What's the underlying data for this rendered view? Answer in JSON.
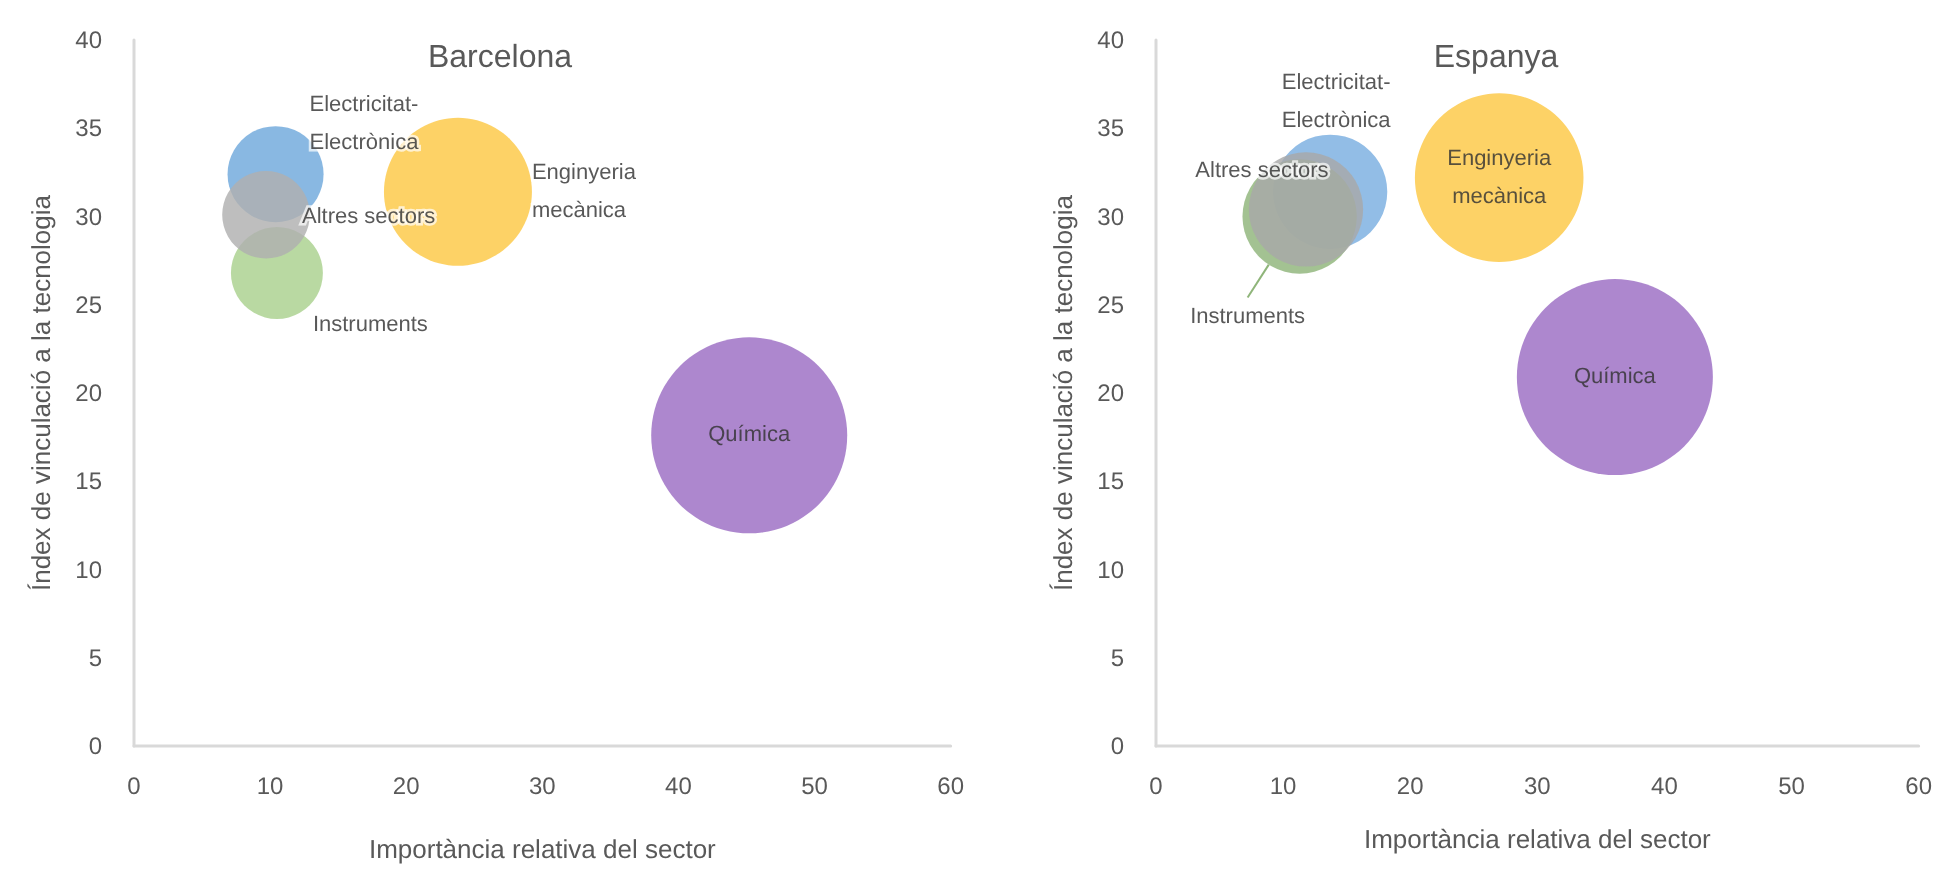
{
  "chart_data": [
    {
      "type": "bubble",
      "title": "Barcelona",
      "xlabel": "Importància relativa del sector",
      "ylabel": "Índex de vinculació a la tecnologia",
      "xlim": [
        0,
        60
      ],
      "xticks": [
        0,
        10,
        20,
        30,
        40,
        50,
        60
      ],
      "ylim": [
        0,
        40
      ],
      "yticks": [
        0,
        5,
        10,
        15,
        20,
        25,
        30,
        35,
        40
      ],
      "series": [
        {
          "name": "Electricitat-Electrònica",
          "color": "#6fa8dc",
          "x": [
            10.4
          ],
          "values": [
            32.4
          ],
          "sizes": [
            0.24
          ]
        },
        {
          "name": "Instruments",
          "color": "#a9d18e",
          "x": [
            10.5
          ],
          "values": [
            26.8
          ],
          "sizes": [
            0.22
          ]
        },
        {
          "name": "Altres sectors",
          "color": "#b0b0b0",
          "x": [
            9.7
          ],
          "values": [
            30.1
          ],
          "sizes": [
            0.2
          ]
        },
        {
          "name": "Enginyeria mecànica",
          "color": "#fdc844",
          "x": [
            23.8
          ],
          "values": [
            31.4
          ],
          "sizes": [
            0.57
          ]
        },
        {
          "name": "Química",
          "color": "#9b6cc3",
          "x": [
            45.2
          ],
          "values": [
            17.6
          ],
          "sizes": [
            1
          ]
        }
      ]
    },
    {
      "type": "bubble",
      "title": "Espanya",
      "xlabel": "Importància relativa del sector",
      "ylabel": "Índex de vinculació a la tecnologia",
      "xlim": [
        0,
        60
      ],
      "xticks": [
        0,
        10,
        20,
        30,
        40,
        50,
        60
      ],
      "ylim": [
        0,
        40
      ],
      "yticks": [
        0,
        5,
        10,
        15,
        20,
        25,
        30,
        35,
        40
      ],
      "series": [
        {
          "name": "Electricitat-Electrònica",
          "color": "#7aaee0",
          "x": [
            13.7
          ],
          "values": [
            31.4
          ],
          "sizes": [
            0.34
          ]
        },
        {
          "name": "Instruments",
          "color": "#8fb57a",
          "x": [
            11.3
          ],
          "values": [
            30.0
          ],
          "sizes": [
            0.34
          ]
        },
        {
          "name": "Altres sectors",
          "color": "#a8a8a8",
          "x": [
            11.8
          ],
          "values": [
            30.4
          ],
          "sizes": [
            0.34
          ]
        },
        {
          "name": "Enginyeria mecànica",
          "color": "#fdc844",
          "x": [
            27.0
          ],
          "values": [
            32.2
          ],
          "sizes": [
            0.74
          ]
        },
        {
          "name": "Química",
          "color": "#9b6cc3",
          "x": [
            36.1
          ],
          "values": [
            20.9
          ],
          "sizes": [
            1
          ]
        }
      ]
    }
  ]
}
